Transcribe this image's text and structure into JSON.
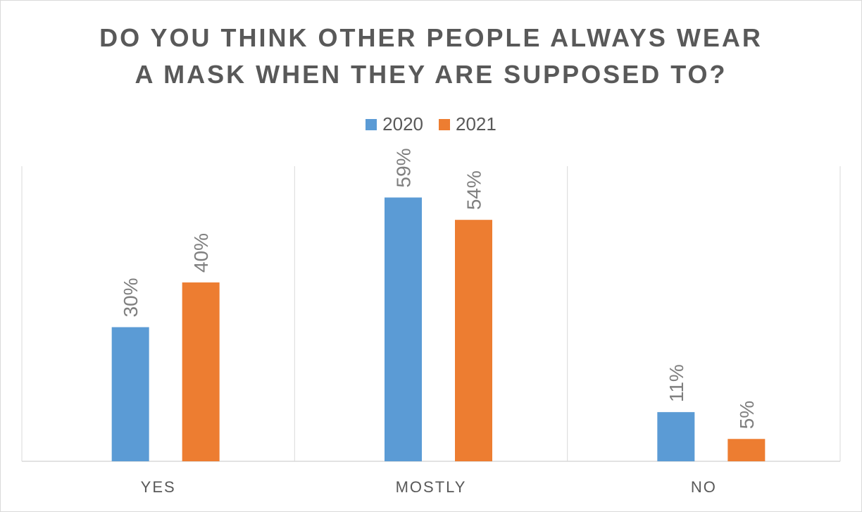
{
  "chart_data": {
    "type": "bar",
    "title_line1": "DO YOU THINK OTHER PEOPLE ALWAYS WEAR",
    "title_line2": "A MASK WHEN THEY ARE SUPPOSED TO?",
    "categories": [
      "YES",
      "MOSTLY",
      "NO"
    ],
    "series": [
      {
        "name": "2020",
        "values": [
          30,
          59,
          11
        ],
        "labels": [
          "30%",
          "59%",
          "11%"
        ],
        "color": "#5b9bd5"
      },
      {
        "name": "2021",
        "values": [
          40,
          54,
          5
        ],
        "labels": [
          "40%",
          "54%",
          "5%"
        ],
        "color": "#ed7d31"
      }
    ],
    "ylim": [
      0,
      66
    ],
    "legend_position": "top-center",
    "grid": "vertical category separators"
  }
}
